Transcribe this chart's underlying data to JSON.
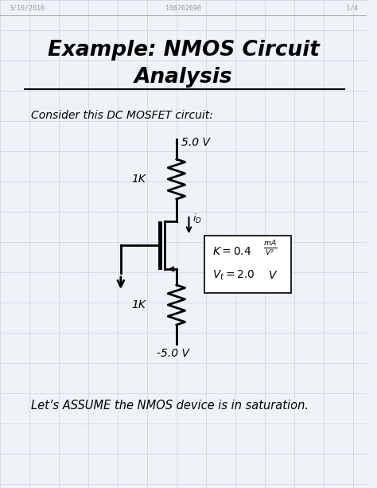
{
  "title_line1": "Example: NMOS Circuit",
  "title_line2": "Analysis",
  "header_left": "3/10/2016",
  "header_center": "106762690",
  "header_right": "1/4",
  "subtitle": "Consider this DC MOSFET circuit:",
  "voltage_top": "5.0 V",
  "voltage_bot": "-5.0 V",
  "resistor_top_label": "1K",
  "resistor_bot_label": "1K",
  "footer": "Let’s ASSUME the NMOS device is in saturation.",
  "bg_color": "#eff3f8",
  "grid_color": "#c5d5e5",
  "title_color": "#000000",
  "body_color": "#000000",
  "header_color": "#999999"
}
